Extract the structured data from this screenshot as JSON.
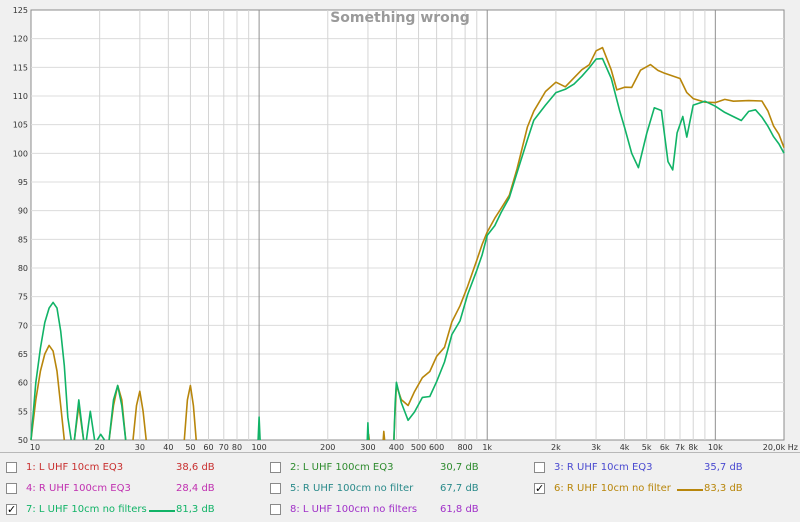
{
  "chart_data": {
    "type": "line",
    "title": "Something wrong",
    "xscale": "log",
    "xlim": [
      10,
      20000
    ],
    "ylim": [
      50,
      125
    ],
    "grid": true,
    "y_ticks": [
      "125",
      "120",
      "115",
      "110",
      "105",
      "100",
      "95",
      "90",
      "85",
      "80",
      "75",
      "70",
      "65",
      "60",
      "55",
      "50"
    ],
    "x_ticks": [
      {
        "x": 10,
        "label": "10"
      },
      {
        "x": 20,
        "label": "20"
      },
      {
        "x": 30,
        "label": "30"
      },
      {
        "x": 40,
        "label": "40"
      },
      {
        "x": 50,
        "label": "50"
      },
      {
        "x": 60,
        "label": "60"
      },
      {
        "x": 70,
        "label": "70"
      },
      {
        "x": 80,
        "label": "80"
      },
      {
        "x": 100,
        "label": "100"
      },
      {
        "x": 200,
        "label": "200"
      },
      {
        "x": 300,
        "label": "300"
      },
      {
        "x": 400,
        "label": "400"
      },
      {
        "x": 500,
        "label": "500"
      },
      {
        "x": 600,
        "label": "600"
      },
      {
        "x": 800,
        "label": "800"
      },
      {
        "x": 1000,
        "label": "1k"
      },
      {
        "x": 2000,
        "label": "2k"
      },
      {
        "x": 3000,
        "label": "3k"
      },
      {
        "x": 4000,
        "label": "4k"
      },
      {
        "x": 5000,
        "label": "5k"
      },
      {
        "x": 6000,
        "label": "6k"
      },
      {
        "x": 7000,
        "label": "7k"
      },
      {
        "x": 8000,
        "label": "8k"
      },
      {
        "x": 10000,
        "label": "10k"
      },
      {
        "x": 20000,
        "label": "20,0k Hz"
      }
    ],
    "series": [
      {
        "name": "6: R UHF 10cm no filter",
        "color": "#b8860b",
        "segments": [
          [
            [
              10,
              50
            ],
            [
              10.5,
              57
            ],
            [
              11,
              62
            ],
            [
              11.5,
              65
            ],
            [
              12,
              66.5
            ],
            [
              12.5,
              65.5
            ],
            [
              13,
              62
            ],
            [
              13.5,
              56
            ],
            [
              14,
              50
            ]
          ],
          [
            [
              15.5,
              50
            ],
            [
              16.2,
              56
            ],
            [
              17,
              50
            ]
          ],
          [
            [
              22,
              50
            ],
            [
              23,
              56
            ],
            [
              24,
              59.5
            ],
            [
              25,
              57
            ],
            [
              26,
              50
            ]
          ],
          [
            [
              28,
              50
            ],
            [
              29,
              56
            ],
            [
              30,
              58.5
            ],
            [
              31,
              55
            ],
            [
              32,
              50
            ]
          ],
          [
            [
              47,
              50
            ],
            [
              48.5,
              57
            ],
            [
              50,
              59.5
            ],
            [
              51.5,
              56
            ],
            [
              53,
              50
            ]
          ],
          [
            [
              300,
              50
            ],
            [
              302,
              51
            ],
            [
              304,
              50
            ]
          ],
          [
            [
              350,
              50
            ],
            [
              352,
              51.5
            ],
            [
              355,
              50
            ]
          ],
          [
            [
              390,
              50
            ],
            [
              395,
              55
            ],
            [
              400,
              59
            ],
            [
              420,
              57
            ],
            [
              450,
              56.5
            ],
            [
              480,
              59
            ],
            [
              520,
              61
            ],
            [
              560,
              61.5
            ],
            [
              600,
              64
            ],
            [
              650,
              66
            ],
            [
              700,
              71
            ],
            [
              760,
              74
            ],
            [
              820,
              77
            ],
            [
              900,
              81
            ],
            [
              950,
              83.5
            ],
            [
              1000,
              86
            ],
            [
              1080,
              89
            ],
            [
              1150,
              91
            ],
            [
              1250,
              93
            ],
            [
              1350,
              97
            ],
            [
              1500,
              104
            ],
            [
              1600,
              107
            ],
            [
              1800,
              111
            ],
            [
              2000,
              113
            ],
            [
              2200,
              112
            ],
            [
              2400,
              113
            ],
            [
              2600,
              114
            ],
            [
              2800,
              115
            ],
            [
              3000,
              118
            ],
            [
              3200,
              119
            ],
            [
              3500,
              115
            ],
            [
              3700,
              111
            ],
            [
              4000,
              111
            ],
            [
              4300,
              111
            ],
            [
              4700,
              114.5
            ],
            [
              5200,
              116
            ],
            [
              5600,
              115
            ],
            [
              6000,
              114
            ],
            [
              6500,
              113
            ],
            [
              7000,
              112.5
            ],
            [
              7500,
              110.5
            ],
            [
              8000,
              110
            ],
            [
              9000,
              109.5
            ],
            [
              10000,
              109
            ],
            [
              11000,
              109
            ],
            [
              12000,
              108.5
            ],
            [
              14000,
              109
            ],
            [
              16000,
              109.5
            ],
            [
              17000,
              108
            ],
            [
              18000,
              105
            ],
            [
              19000,
              103
            ],
            [
              20000,
              101
            ]
          ]
        ]
      },
      {
        "name": "7: L UHF 10cm no filters",
        "color": "#11b367",
        "segments": [
          [
            [
              10,
              50
            ],
            [
              10.5,
              60
            ],
            [
              11,
              66
            ],
            [
              11.5,
              70.5
            ],
            [
              12,
              73
            ],
            [
              12.5,
              74
            ],
            [
              13,
              73
            ],
            [
              13.5,
              69
            ],
            [
              14,
              63
            ],
            [
              14.5,
              54
            ],
            [
              15,
              50
            ]
          ],
          [
            [
              15.5,
              50
            ],
            [
              16.2,
              57
            ],
            [
              17,
              50
            ]
          ],
          [
            [
              17.5,
              50
            ],
            [
              18.2,
              55
            ],
            [
              19,
              50
            ]
          ],
          [
            [
              19.5,
              50
            ],
            [
              20.2,
              51
            ],
            [
              21,
              50
            ]
          ],
          [
            [
              22,
              50
            ],
            [
              23,
              57
            ],
            [
              24,
              59.5
            ],
            [
              25,
              56
            ],
            [
              26,
              50
            ]
          ],
          [
            [
              99,
              50
            ],
            [
              100,
              54
            ],
            [
              101,
              50
            ]
          ],
          [
            [
              298,
              50
            ],
            [
              300,
              53
            ],
            [
              302,
              50
            ]
          ],
          [
            [
              390,
              50
            ],
            [
              395,
              56
            ],
            [
              400,
              60
            ],
            [
              420,
              57
            ],
            [
              450,
              54
            ],
            [
              480,
              55
            ],
            [
              520,
              57
            ],
            [
              560,
              57
            ],
            [
              600,
              60
            ],
            [
              650,
              64
            ],
            [
              700,
              69
            ],
            [
              760,
              71
            ],
            [
              820,
              75
            ],
            [
              900,
              79
            ],
            [
              950,
              82
            ],
            [
              1000,
              86
            ],
            [
              1080,
              88
            ],
            [
              1150,
              90
            ],
            [
              1250,
              92
            ],
            [
              1350,
              96
            ],
            [
              1500,
              102
            ],
            [
              1600,
              106
            ],
            [
              1800,
              109
            ],
            [
              2000,
              111
            ],
            [
              2200,
              111
            ],
            [
              2400,
              111.5
            ],
            [
              2600,
              113
            ],
            [
              2800,
              115
            ],
            [
              3000,
              117
            ],
            [
              3200,
              117
            ],
            [
              3500,
              113
            ],
            [
              3800,
              107
            ],
            [
              4000,
              104
            ],
            [
              4300,
              100
            ],
            [
              4600,
              98
            ],
            [
              5000,
              104
            ],
            [
              5400,
              108
            ],
            [
              5800,
              107
            ],
            [
              6200,
              98
            ],
            [
              6500,
              97
            ],
            [
              6800,
              104
            ],
            [
              7200,
              107
            ],
            [
              7500,
              103
            ],
            [
              8000,
              108
            ],
            [
              9000,
              108.5
            ],
            [
              10000,
              108
            ],
            [
              11000,
              107.5
            ],
            [
              12000,
              107
            ],
            [
              13000,
              106
            ],
            [
              14000,
              107
            ],
            [
              15000,
              107
            ],
            [
              16000,
              106
            ],
            [
              17000,
              105
            ],
            [
              18000,
              103.5
            ],
            [
              19000,
              102
            ],
            [
              20000,
              100
            ]
          ]
        ]
      }
    ]
  },
  "legend": [
    {
      "label": "1: L UHF 10cm EQ3",
      "value": "38,6 dB",
      "checked": false,
      "color": "#c83030"
    },
    {
      "label": "2: L UHF 100cm EQ3",
      "value": "30,7 dB",
      "checked": false,
      "color": "#2e8b2e"
    },
    {
      "label": "3: R UHF 10cm EQ3",
      "value": "35,7 dB",
      "checked": false,
      "color": "#4a4ad0"
    },
    {
      "label": "4: R UHF 100cm EQ3",
      "value": "28,4 dB",
      "checked": false,
      "color": "#c030b0"
    },
    {
      "label": "5: R UHF 100cm no filter",
      "value": "67,7 dB",
      "checked": false,
      "color": "#2a8a8a"
    },
    {
      "label": "6: R UHF 10cm no filter",
      "value": "83,3 dB",
      "checked": true,
      "color": "#b8860b"
    },
    {
      "label": "7: L UHF 10cm no filters",
      "value": "81,3 dB",
      "checked": true,
      "color": "#11b367"
    },
    {
      "label": "8: L UHF 100cm no filters",
      "value": "61,8 dB",
      "checked": false,
      "color": "#a030c8"
    }
  ],
  "checkmark": "✓"
}
